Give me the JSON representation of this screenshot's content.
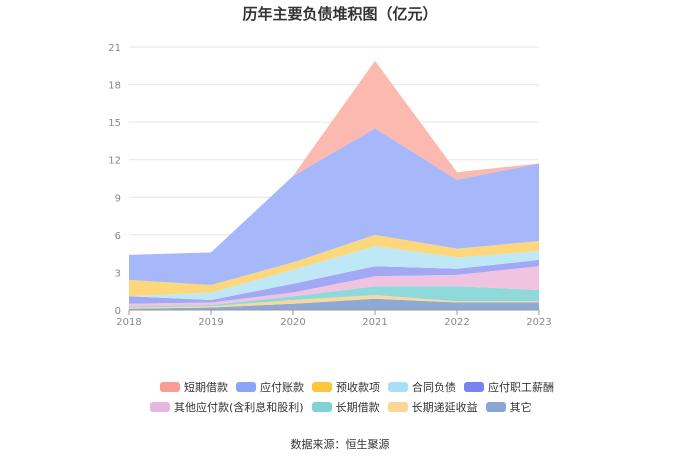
{
  "chart_data": {
    "type": "area",
    "stacked": true,
    "title": "历年主要负债堆积图（亿元）",
    "x": [
      "2018",
      "2019",
      "2020",
      "2021",
      "2022",
      "2023"
    ],
    "ylim": [
      0,
      21
    ],
    "yticks": [
      0,
      3,
      6,
      9,
      12,
      15,
      18,
      21
    ],
    "grid": true,
    "legend_position": "bottom",
    "series": [
      {
        "name": "其它",
        "color": "#8fa9d6",
        "values": [
          0.1,
          0.2,
          0.5,
          0.9,
          0.6,
          0.6
        ]
      },
      {
        "name": "长期递延收益",
        "color": "#fcd79c",
        "values": [
          0.1,
          0.1,
          0.3,
          0.3,
          0.1,
          0.1
        ]
      },
      {
        "name": "长期借款",
        "color": "#8ed9d9",
        "values": [
          0.1,
          0.1,
          0.3,
          0.7,
          1.2,
          0.9
        ]
      },
      {
        "name": "其他应付款(含利息和股利)",
        "color": "#f0c4e0",
        "values": [
          0.2,
          0.2,
          0.3,
          0.8,
          0.9,
          1.9
        ]
      },
      {
        "name": "应付职工薪酬",
        "color": "#a3a8f5",
        "values": [
          0.6,
          0.2,
          0.7,
          0.8,
          0.5,
          0.5
        ]
      },
      {
        "name": "合同负债",
        "color": "#bfe8f7",
        "values": [
          0.0,
          0.6,
          1.1,
          1.6,
          0.9,
          0.7
        ]
      },
      {
        "name": "预收款项",
        "color": "#fdd77c",
        "values": [
          1.3,
          0.6,
          0.6,
          0.9,
          0.7,
          0.8
        ]
      },
      {
        "name": "应付账款",
        "color": "#a6b8fa",
        "values": [
          2.0,
          2.6,
          6.9,
          8.5,
          5.5,
          6.2
        ]
      },
      {
        "name": "短期借款",
        "color": "#fbb9b0",
        "values": [
          0.0,
          0.0,
          0.0,
          5.4,
          0.6,
          0.0
        ]
      }
    ],
    "legend": [
      {
        "name": "短期借款",
        "color": "#fa9e94"
      },
      {
        "name": "应付账款",
        "color": "#8aa4f8"
      },
      {
        "name": "预收款项",
        "color": "#fcc63c"
      },
      {
        "name": "合同负债",
        "color": "#a9defa"
      },
      {
        "name": "应付职工薪酬",
        "color": "#7b82ef"
      },
      {
        "name": "其他应付款(含利息和股利)",
        "color": "#e6b6dc"
      },
      {
        "name": "长期借款",
        "color": "#7fd3d6"
      },
      {
        "name": "长期递延收益",
        "color": "#fbd694"
      },
      {
        "name": "其它",
        "color": "#8aa5d8"
      }
    ]
  },
  "source": "数据来源：恒生聚源"
}
